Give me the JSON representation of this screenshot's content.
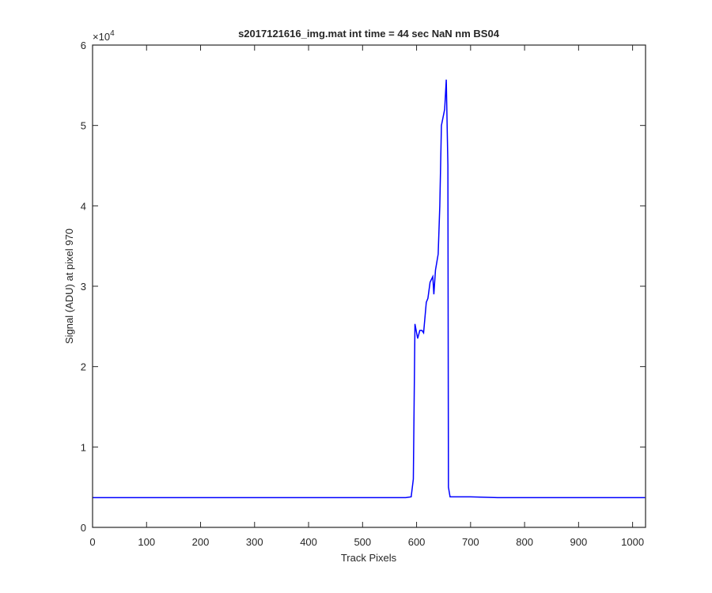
{
  "chart_data": {
    "type": "line",
    "title": "s2017121616_img.mat int time = 44 sec  NaN nm BS04",
    "xlabel": "Track Pixels",
    "ylabel": "Signal (ADU) at pixel 970",
    "y_multiplier": {
      "base": "×10",
      "exponent": "4"
    },
    "color": "#0000ff",
    "x": [
      0,
      50,
      100,
      150,
      200,
      250,
      300,
      350,
      400,
      450,
      500,
      550,
      580,
      590,
      594,
      597,
      602,
      606,
      610,
      613,
      618,
      621,
      625,
      630,
      632,
      635,
      640,
      643,
      646,
      649,
      652,
      655,
      658,
      659,
      662,
      680,
      700,
      750,
      800,
      850,
      900,
      950,
      1000,
      1023
    ],
    "values": [
      0.37,
      0.37,
      0.37,
      0.37,
      0.37,
      0.37,
      0.37,
      0.37,
      0.37,
      0.37,
      0.37,
      0.37,
      0.37,
      0.38,
      0.6,
      2.53,
      2.35,
      2.45,
      2.45,
      2.42,
      2.8,
      2.85,
      3.05,
      3.12,
      2.9,
      3.2,
      3.4,
      4.0,
      5.0,
      5.1,
      5.2,
      5.57,
      4.5,
      0.5,
      0.38,
      0.38,
      0.38,
      0.37,
      0.37,
      0.37,
      0.37,
      0.37,
      0.37,
      0.37
    ],
    "xlim": [
      0,
      1024
    ],
    "ylim": [
      0,
      6
    ],
    "xticks": [
      0,
      100,
      200,
      300,
      400,
      500,
      600,
      700,
      800,
      900,
      1000
    ],
    "yticks": [
      0,
      1,
      2,
      3,
      4,
      5,
      6
    ]
  }
}
